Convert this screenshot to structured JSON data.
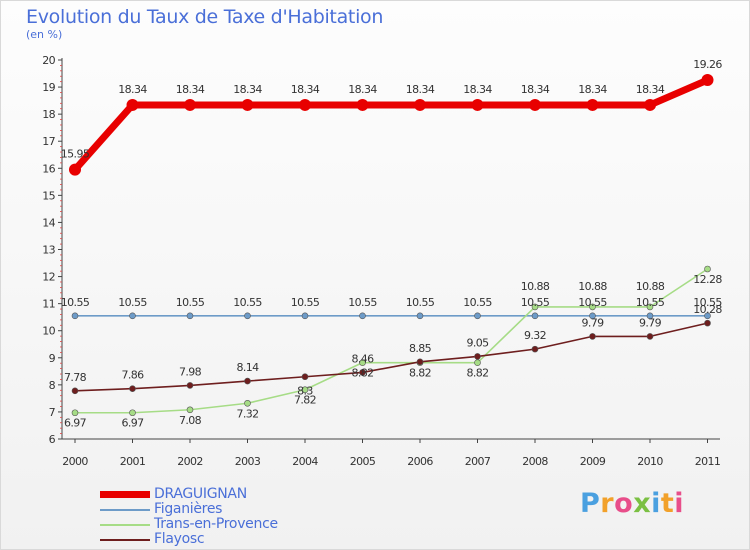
{
  "chart_data": {
    "type": "line",
    "title": "Evolution du Taux de Taxe d'Habitation",
    "subtitle": "(en %)",
    "x": [
      "2000",
      "2001",
      "2002",
      "2003",
      "2004",
      "2005",
      "2006",
      "2007",
      "2008",
      "2009",
      "2010",
      "2011"
    ],
    "ylim": [
      6,
      20
    ],
    "yticks": [
      "6",
      "7",
      "8",
      "9",
      "10",
      "11",
      "12",
      "13",
      "14",
      "15",
      "16",
      "17",
      "18",
      "19",
      "20"
    ],
    "grid": false,
    "legend_position": "bottom-left",
    "series": [
      {
        "name": "DRAGUIGNAN",
        "color": "#e80000",
        "values": [
          15.95,
          18.34,
          18.34,
          18.34,
          18.34,
          18.34,
          18.34,
          18.34,
          18.34,
          18.34,
          18.34,
          19.26
        ],
        "labels": [
          "15.95",
          "18.34",
          "18.34",
          "18.34",
          "18.34",
          "18.34",
          "18.34",
          "18.34",
          "18.34",
          "18.34",
          "18.34",
          "19.26"
        ]
      },
      {
        "name": "Figanières",
        "color": "#6d9bc8",
        "values": [
          10.55,
          10.55,
          10.55,
          10.55,
          10.55,
          10.55,
          10.55,
          10.55,
          10.55,
          10.55,
          10.55,
          10.55
        ],
        "labels": [
          "10.55",
          "10.55",
          "10.55",
          "10.55",
          "10.55",
          "10.55",
          "10.55",
          "10.55",
          "10.55",
          "10.55",
          "10.55",
          "10.55"
        ]
      },
      {
        "name": "Trans-en-Provence",
        "color": "#a6dc86",
        "values": [
          6.97,
          6.97,
          7.08,
          7.32,
          7.82,
          8.82,
          8.82,
          8.82,
          10.88,
          10.88,
          10.88,
          12.28
        ],
        "labels": [
          "6.97",
          "6.97",
          "7.08",
          "7.32",
          "7.82",
          "8.82",
          "8.82",
          "8.82",
          "10.88",
          "10.88",
          "10.88",
          "12.28"
        ]
      },
      {
        "name": "Flayosc",
        "color": "#6e1e1e",
        "values": [
          7.78,
          7.86,
          7.98,
          8.14,
          8.3,
          8.46,
          8.85,
          9.05,
          9.32,
          9.79,
          9.79,
          10.28
        ],
        "labels": [
          "7.78",
          "7.86",
          "7.98",
          "8.14",
          "8.3",
          "8.46",
          "8.85",
          "9.05",
          "9.32",
          "9.79",
          "9.79",
          "10.28"
        ]
      }
    ]
  },
  "logo": {
    "letters": [
      "P",
      "r",
      "o",
      "x",
      "i",
      "t",
      "i"
    ],
    "colors": [
      "#4aa0e0",
      "#f2a12a",
      "#e84e8a",
      "#7bc043",
      "#4aa0e0",
      "#f2a12a",
      "#e84e8a"
    ]
  }
}
